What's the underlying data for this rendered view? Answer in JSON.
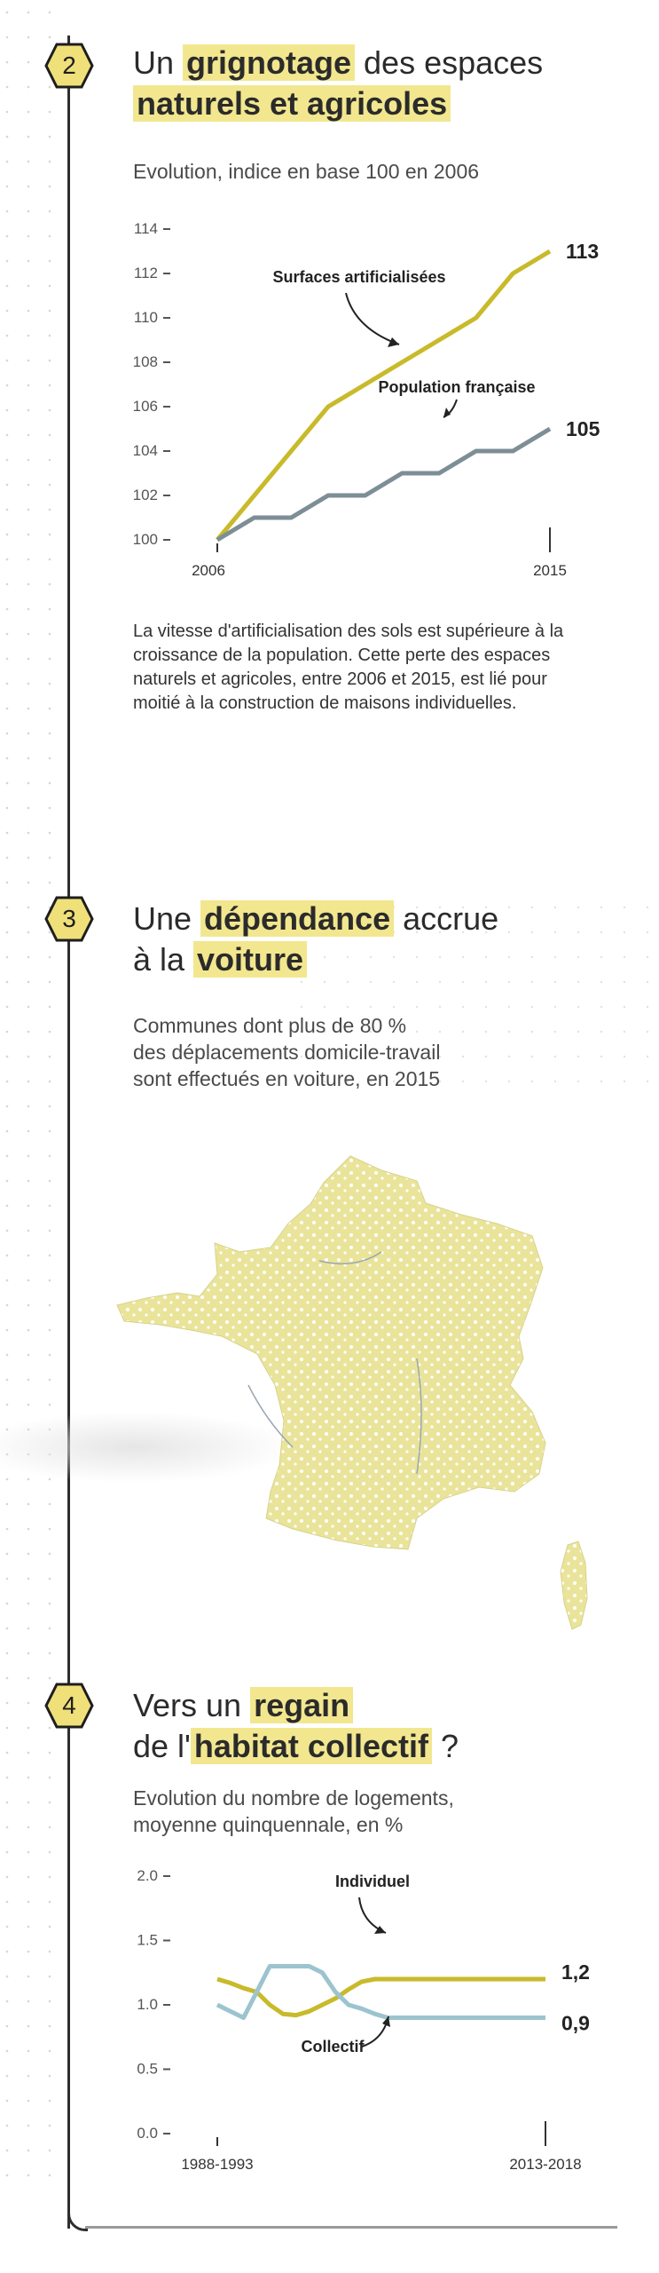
{
  "colors": {
    "accent": "#c8ba2a",
    "highlight": "#f2e78f",
    "gray_series": "#7d8e96",
    "blue_series": "#9cc4cf",
    "map_fill": "#e9e49a",
    "badge_fill": "#efe07a"
  },
  "sections": [
    {
      "number": "2",
      "title_pre": "Un ",
      "title_highlight": "grignotage",
      "title_mid": " des espaces ",
      "title_highlight2": "naturels et agricoles",
      "subtitle": "Evolution, indice en base 100 en 2006",
      "description": "La vitesse d'artificialisation des sols est supérieure à la croissance de la population. Cette perte des espaces naturels et agricoles, entre 2006 et 2015, est lié pour moitié à la construction de maisons individuelles."
    },
    {
      "number": "3",
      "title_pre": "Une ",
      "title_highlight": "dépendance",
      "title_mid": " accrue",
      "title_line2_pre": "à la ",
      "title_highlight2": "voiture",
      "subtitle_line1": "Communes dont plus de 80 %",
      "subtitle_line2": "des déplacements domicile-travail",
      "subtitle_line3": "sont effectués en voiture, en 2015"
    },
    {
      "number": "4",
      "title_pre": "Vers un ",
      "title_highlight": "regain",
      "title_line2_pre": "de l'",
      "title_highlight2": "habitat collectif",
      "title_end": " ?",
      "subtitle_line1": "Evolution du nombre de logements,",
      "subtitle_line2": "moyenne quinquennale, en %"
    }
  ],
  "chart_data": [
    {
      "type": "line",
      "title": "",
      "ylim": [
        100,
        114
      ],
      "yticks": [
        "114",
        "112",
        "110",
        "108",
        "106",
        "104",
        "102",
        "100"
      ],
      "x": [
        2006,
        2007,
        2008,
        2009,
        2010,
        2011,
        2012,
        2013,
        2014,
        2015
      ],
      "xtick_labels": [
        "2006",
        "2015"
      ],
      "series": [
        {
          "name": "Surfaces artificialisées",
          "values": [
            100,
            102,
            104,
            106,
            107,
            108,
            109,
            110,
            112,
            113
          ],
          "end_label": "113",
          "color": "#c8ba2a"
        },
        {
          "name": "Population française",
          "values": [
            100,
            101,
            101,
            102,
            102,
            103,
            103,
            104,
            104,
            105
          ],
          "end_label": "105",
          "color": "#7d8e96"
        }
      ]
    },
    {
      "type": "line",
      "title": "",
      "ylim": [
        0.0,
        2.0
      ],
      "yticks": [
        "2.0",
        "1.5",
        "1.0",
        "0.5",
        "0.0"
      ],
      "x": [
        1,
        2,
        3,
        4,
        5,
        6,
        7,
        8,
        9,
        10,
        11,
        12,
        13,
        14,
        15,
        16,
        17,
        18,
        19,
        20,
        21,
        22,
        23,
        24,
        25,
        26
      ],
      "xtick_labels": [
        "1988-1993",
        "2013-2018"
      ],
      "series": [
        {
          "name": "Individuel",
          "values": [
            1.2,
            1.17,
            1.13,
            1.1,
            1.0,
            0.93,
            0.92,
            0.95,
            1.0,
            1.05,
            1.12,
            1.18,
            1.2,
            1.2,
            1.2,
            1.2,
            1.2,
            1.2,
            1.2,
            1.2,
            1.2,
            1.2,
            1.2,
            1.2,
            1.2,
            1.2
          ],
          "end_label": "1,2",
          "color": "#c8ba2a"
        },
        {
          "name": "Collectif",
          "values": [
            1.0,
            0.95,
            0.9,
            1.1,
            1.3,
            1.3,
            1.3,
            1.3,
            1.25,
            1.1,
            1.0,
            0.97,
            0.93,
            0.9,
            0.9,
            0.9,
            0.9,
            0.9,
            0.9,
            0.9,
            0.9,
            0.9,
            0.9,
            0.9,
            0.9,
            0.9
          ],
          "end_label": "0,9",
          "color": "#9cc4cf"
        }
      ]
    }
  ]
}
